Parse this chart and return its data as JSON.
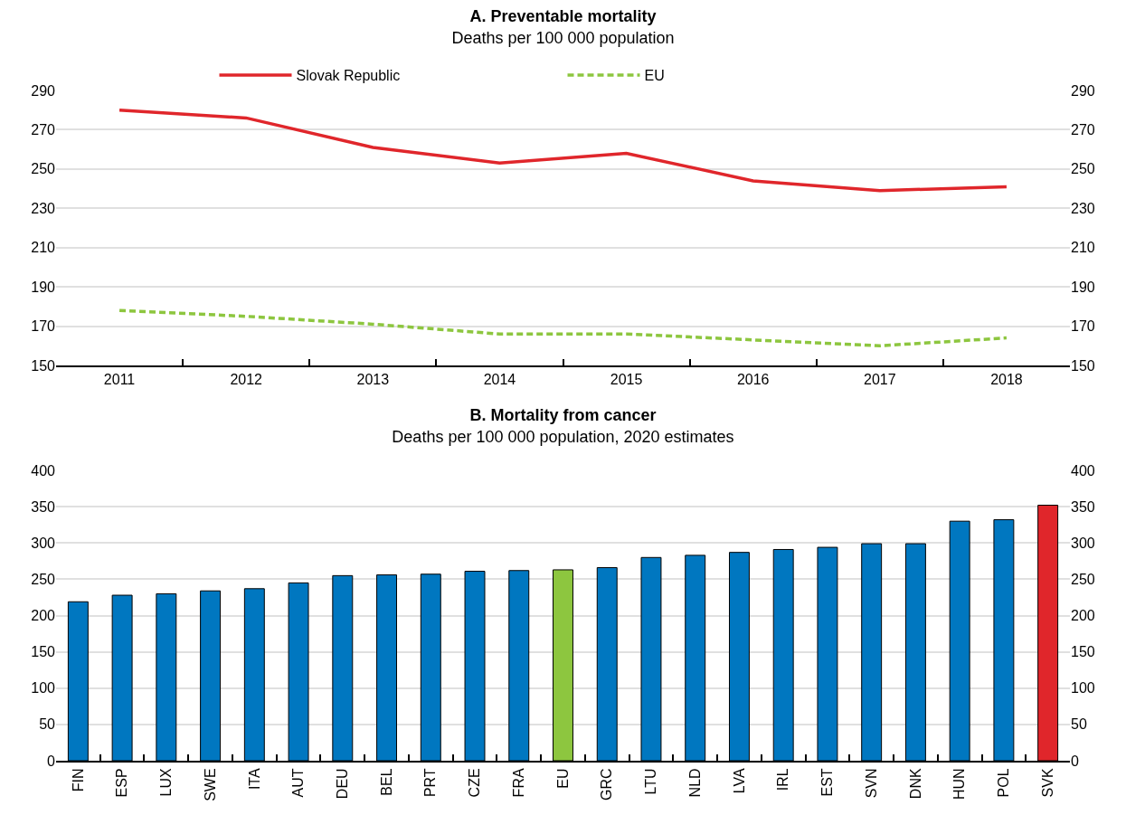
{
  "chart_data": [
    {
      "type": "line",
      "title": "A. Preventable mortality",
      "subtitle": "Deaths per 100 000 population",
      "categories": [
        "2011",
        "2012",
        "2013",
        "2014",
        "2015",
        "2016",
        "2017",
        "2018"
      ],
      "series": [
        {
          "name": "Slovak Republic",
          "color": "#e0262b",
          "values": [
            280,
            276,
            261,
            253,
            258,
            244,
            239,
            241
          ],
          "line_style": "solid"
        },
        {
          "name": "EU",
          "color": "#8dc63f",
          "values": [
            178,
            175,
            171,
            166,
            166,
            163,
            160,
            164
          ],
          "line_style": "dashed"
        }
      ],
      "ylim": [
        150,
        290
      ],
      "yticks": [
        150,
        170,
        190,
        210,
        230,
        250,
        270,
        290
      ],
      "y2lim": [
        150,
        290
      ],
      "y2ticks": [
        150,
        170,
        190,
        210,
        230,
        250,
        270,
        290
      ],
      "grid": "y",
      "legend": "top",
      "marker": "none"
    },
    {
      "type": "bar",
      "title": "B. Mortality from cancer",
      "subtitle": "Deaths per 100 000 population, 2020 estimates",
      "categories": [
        "FIN",
        "ESP",
        "LUX",
        "SWE",
        "ITA",
        "AUT",
        "DEU",
        "BEL",
        "PRT",
        "CZE",
        "FRA",
        "EU",
        "GRC",
        "LTU",
        "NLD",
        "LVA",
        "IRL",
        "EST",
        "SVN",
        "DNK",
        "HUN",
        "POL",
        "SVK"
      ],
      "values": [
        219,
        228,
        230,
        234,
        237,
        245,
        255,
        256,
        257,
        261,
        262,
        263,
        266,
        280,
        283,
        287,
        291,
        294,
        299,
        299,
        330,
        332,
        352
      ],
      "colors": [
        "#0077c0",
        "#0077c0",
        "#0077c0",
        "#0077c0",
        "#0077c0",
        "#0077c0",
        "#0077c0",
        "#0077c0",
        "#0077c0",
        "#0077c0",
        "#0077c0",
        "#8dc63f",
        "#0077c0",
        "#0077c0",
        "#0077c0",
        "#0077c0",
        "#0077c0",
        "#0077c0",
        "#0077c0",
        "#0077c0",
        "#0077c0",
        "#0077c0",
        "#e0262b"
      ],
      "ylim": [
        0,
        400
      ],
      "yticks": [
        0,
        50,
        100,
        150,
        200,
        250,
        300,
        350,
        400
      ],
      "y2lim": [
        0,
        400
      ],
      "y2ticks": [
        0,
        50,
        100,
        150,
        200,
        250,
        300,
        350,
        400
      ],
      "grid": "y",
      "legend": false
    }
  ]
}
